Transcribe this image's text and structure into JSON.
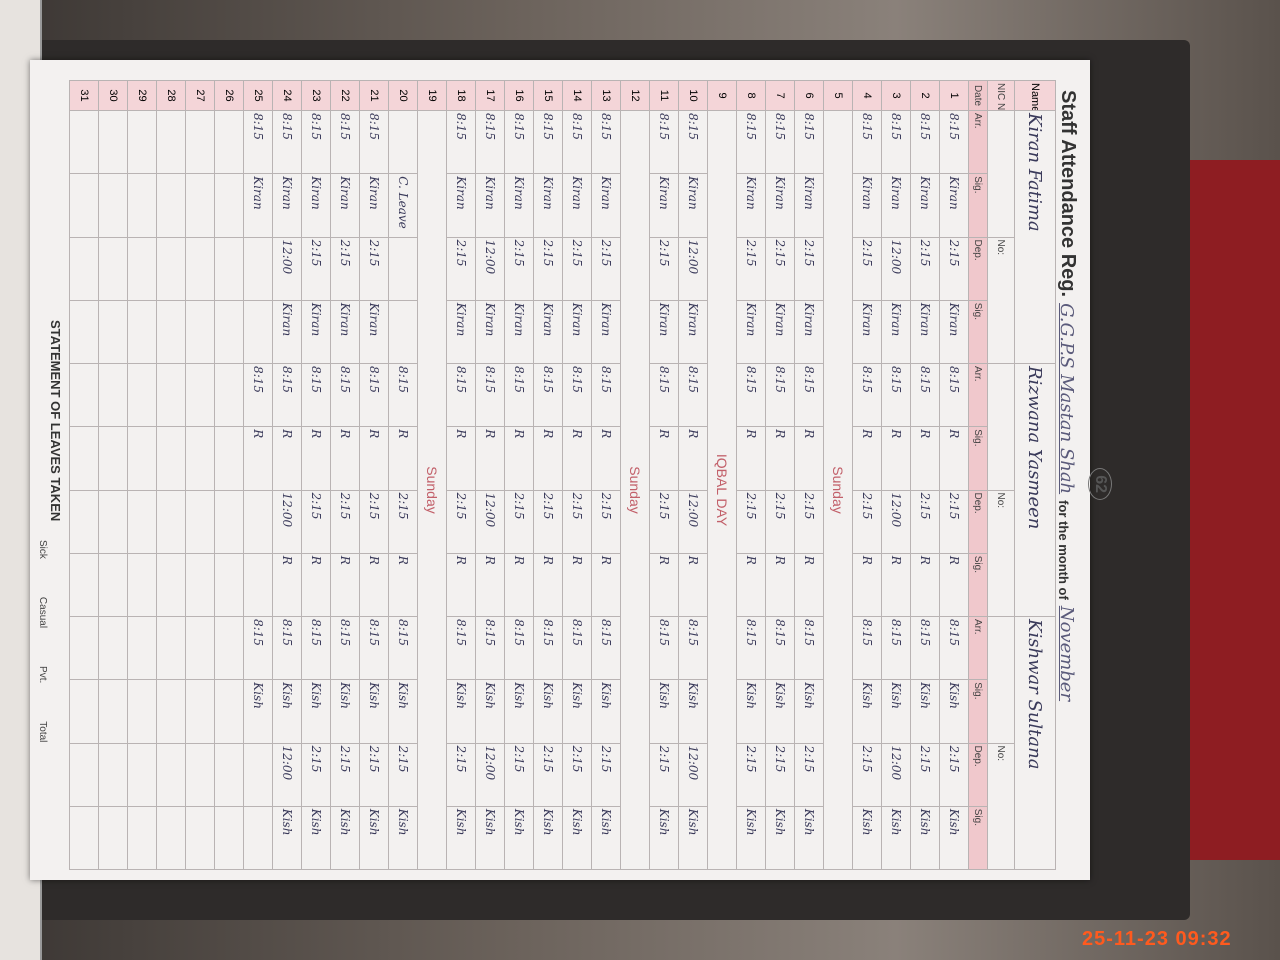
{
  "register": {
    "title": "Staff Attendance Reg.",
    "school": "G.G.P.S Mastan Shah",
    "month_label": "for the month of",
    "month": "November",
    "page_number": "62",
    "name_label": "Name:",
    "nic_label": "NIC No:",
    "no_label": "No:",
    "staff": [
      "Kiran Fatima",
      "Rizwana Yasmeen",
      "Kishwar Sultana"
    ],
    "headers": {
      "date": "Date",
      "arr": "Arr.",
      "sig": "Sig.",
      "dep": "Dep."
    },
    "rows": [
      {
        "d": "1",
        "c": [
          [
            "8:15",
            "Kiran",
            "2:15",
            "Kiran"
          ],
          [
            "8:15",
            "R",
            "2:15",
            "R"
          ],
          [
            "8:15",
            "Kish",
            "2:15",
            "Kish"
          ]
        ]
      },
      {
        "d": "2",
        "c": [
          [
            "8:15",
            "Kiran",
            "2:15",
            "Kiran"
          ],
          [
            "8:15",
            "R",
            "2:15",
            "R"
          ],
          [
            "8:15",
            "Kish",
            "2:15",
            "Kish"
          ]
        ]
      },
      {
        "d": "3",
        "c": [
          [
            "8:15",
            "Kiran",
            "12:00",
            "Kiran"
          ],
          [
            "8:15",
            "R",
            "12:00",
            "R"
          ],
          [
            "8:15",
            "Kish",
            "12:00",
            "Kish"
          ]
        ]
      },
      {
        "d": "4",
        "c": [
          [
            "8:15",
            "Kiran",
            "2:15",
            "Kiran"
          ],
          [
            "8:15",
            "R",
            "2:15",
            "R"
          ],
          [
            "8:15",
            "Kish",
            "2:15",
            "Kish"
          ]
        ]
      },
      {
        "d": "5",
        "note": "Sunday"
      },
      {
        "d": "6",
        "c": [
          [
            "8:15",
            "Kiran",
            "2:15",
            "Kiran"
          ],
          [
            "8:15",
            "R",
            "2:15",
            "R"
          ],
          [
            "8:15",
            "Kish",
            "2:15",
            "Kish"
          ]
        ]
      },
      {
        "d": "7",
        "c": [
          [
            "8:15",
            "Kiran",
            "2:15",
            "Kiran"
          ],
          [
            "8:15",
            "R",
            "2:15",
            "R"
          ],
          [
            "8:15",
            "Kish",
            "2:15",
            "Kish"
          ]
        ]
      },
      {
        "d": "8",
        "c": [
          [
            "8:15",
            "Kiran",
            "2:15",
            "Kiran"
          ],
          [
            "8:15",
            "R",
            "2:15",
            "R"
          ],
          [
            "8:15",
            "Kish",
            "2:15",
            "Kish"
          ]
        ]
      },
      {
        "d": "9",
        "note": "IQBAL DAY"
      },
      {
        "d": "10",
        "c": [
          [
            "8:15",
            "Kiran",
            "12:00",
            "Kiran"
          ],
          [
            "8:15",
            "R",
            "12:00",
            "R"
          ],
          [
            "8:15",
            "Kish",
            "12:00",
            "Kish"
          ]
        ]
      },
      {
        "d": "11",
        "c": [
          [
            "8:15",
            "Kiran",
            "2:15",
            "Kiran"
          ],
          [
            "8:15",
            "R",
            "2:15",
            "R"
          ],
          [
            "8:15",
            "Kish",
            "2:15",
            "Kish"
          ]
        ]
      },
      {
        "d": "12",
        "note": "Sunday"
      },
      {
        "d": "13",
        "c": [
          [
            "8:15",
            "Kiran",
            "2:15",
            "Kiran"
          ],
          [
            "8:15",
            "R",
            "2:15",
            "R"
          ],
          [
            "8:15",
            "Kish",
            "2:15",
            "Kish"
          ]
        ]
      },
      {
        "d": "14",
        "c": [
          [
            "8:15",
            "Kiran",
            "2:15",
            "Kiran"
          ],
          [
            "8:15",
            "R",
            "2:15",
            "R"
          ],
          [
            "8:15",
            "Kish",
            "2:15",
            "Kish"
          ]
        ]
      },
      {
        "d": "15",
        "c": [
          [
            "8:15",
            "Kiran",
            "2:15",
            "Kiran"
          ],
          [
            "8:15",
            "R",
            "2:15",
            "R"
          ],
          [
            "8:15",
            "Kish",
            "2:15",
            "Kish"
          ]
        ]
      },
      {
        "d": "16",
        "c": [
          [
            "8:15",
            "Kiran",
            "2:15",
            "Kiran"
          ],
          [
            "8:15",
            "R",
            "2:15",
            "R"
          ],
          [
            "8:15",
            "Kish",
            "2:15",
            "Kish"
          ]
        ]
      },
      {
        "d": "17",
        "c": [
          [
            "8:15",
            "Kiran",
            "12:00",
            "Kiran"
          ],
          [
            "8:15",
            "R",
            "12:00",
            "R"
          ],
          [
            "8:15",
            "Kish",
            "12:00",
            "Kish"
          ]
        ]
      },
      {
        "d": "18",
        "c": [
          [
            "8:15",
            "Kiran",
            "2:15",
            "Kiran"
          ],
          [
            "8:15",
            "R",
            "2:15",
            "R"
          ],
          [
            "8:15",
            "Kish",
            "2:15",
            "Kish"
          ]
        ]
      },
      {
        "d": "19",
        "note": "Sunday"
      },
      {
        "d": "20",
        "c": [
          [
            "",
            "C. Leave",
            "",
            ""
          ],
          [
            "8:15",
            "R",
            "2:15",
            "R"
          ],
          [
            "8:15",
            "Kish",
            "2:15",
            "Kish"
          ]
        ]
      },
      {
        "d": "21",
        "c": [
          [
            "8:15",
            "Kiran",
            "2:15",
            "Kiran"
          ],
          [
            "8:15",
            "R",
            "2:15",
            "R"
          ],
          [
            "8:15",
            "Kish",
            "2:15",
            "Kish"
          ]
        ]
      },
      {
        "d": "22",
        "c": [
          [
            "8:15",
            "Kiran",
            "2:15",
            "Kiran"
          ],
          [
            "8:15",
            "R",
            "2:15",
            "R"
          ],
          [
            "8:15",
            "Kish",
            "2:15",
            "Kish"
          ]
        ]
      },
      {
        "d": "23",
        "c": [
          [
            "8:15",
            "Kiran",
            "2:15",
            "Kiran"
          ],
          [
            "8:15",
            "R",
            "2:15",
            "R"
          ],
          [
            "8:15",
            "Kish",
            "2:15",
            "Kish"
          ]
        ]
      },
      {
        "d": "24",
        "c": [
          [
            "8:15",
            "Kiran",
            "12:00",
            "Kiran"
          ],
          [
            "8:15",
            "R",
            "12:00",
            "R"
          ],
          [
            "8:15",
            "Kish",
            "12:00",
            "Kish"
          ]
        ]
      },
      {
        "d": "25",
        "c": [
          [
            "8:15",
            "Kiran",
            "",
            ""
          ],
          [
            "8:15",
            "R",
            "",
            ""
          ],
          [
            "8:15",
            "Kish",
            "",
            ""
          ]
        ]
      },
      {
        "d": "26"
      },
      {
        "d": "27"
      },
      {
        "d": "28"
      },
      {
        "d": "29"
      },
      {
        "d": "30"
      },
      {
        "d": "31"
      }
    ],
    "leaves_title": "STATEMENT OF LEAVES TAKEN",
    "leaves_cols": [
      "Sick",
      "Casual",
      "Pvt.",
      "Total"
    ]
  },
  "timestamp": "25-11-23  09:32",
  "colors": {
    "header_pink": "#f0c8cc",
    "note_red": "#c2606a",
    "timestamp": "#ff5a1e"
  }
}
